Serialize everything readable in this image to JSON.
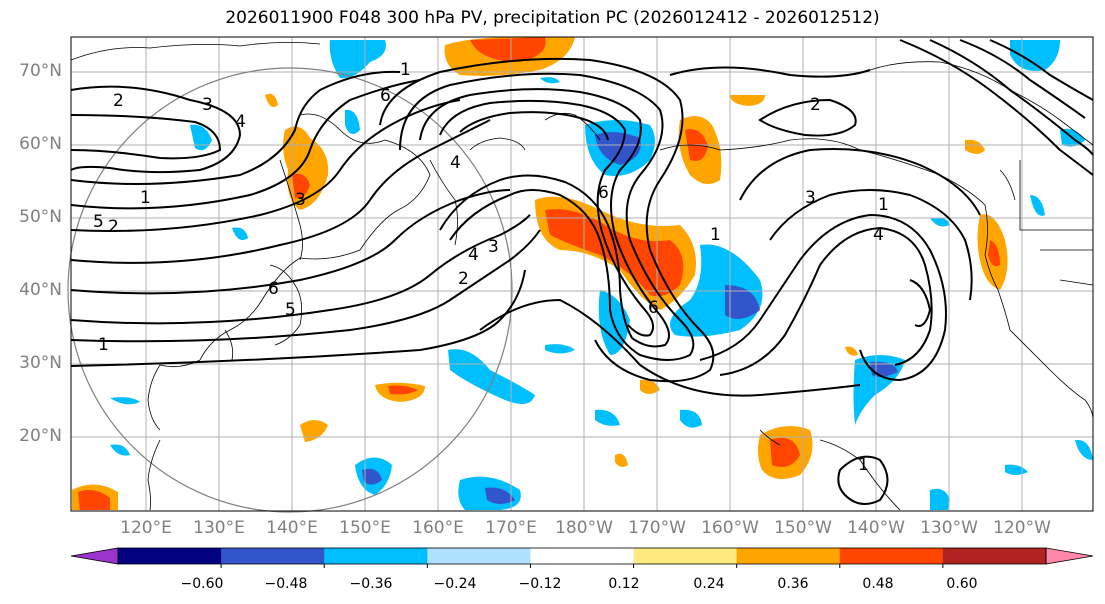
{
  "title": "2026011900 F048 300 hPa PV, precipitation PC (2026012412 - 2026012512)",
  "lat_labels": [
    "70°N",
    "60°N",
    "50°N",
    "40°N",
    "30°N",
    "20°N"
  ],
  "lon_labels": [
    "120°E",
    "130°E",
    "140°E",
    "150°E",
    "160°E",
    "170°E",
    "180°W",
    "170°W",
    "160°W",
    "150°W",
    "140°W",
    "130°W",
    "120°W"
  ],
  "contour_labels": [
    "1",
    "2",
    "3",
    "4",
    "5",
    "6",
    "1",
    "2",
    "3",
    "4",
    "5",
    "6",
    "1",
    "2",
    "3",
    "4",
    "6",
    "2",
    "3",
    "1",
    "4",
    "1",
    "6",
    "1"
  ],
  "colorbar": {
    "ticks": [
      "−0.60",
      "−0.48",
      "−0.36",
      "−0.24",
      "−0.12",
      "0.12",
      "0.24",
      "0.36",
      "0.48",
      "0.60"
    ],
    "colors": [
      "#9933cc",
      "#000080",
      "#3355cc",
      "#00bfff",
      "#b0e0ff",
      "#ffffff",
      "#ffeb80",
      "#ffa500",
      "#ff4500",
      "#b22222",
      "#ff88aa"
    ]
  },
  "colors": {
    "grid": "#b0b0b0",
    "contour": "#000000",
    "coast": "#000000",
    "axis_label": "#808080"
  }
}
